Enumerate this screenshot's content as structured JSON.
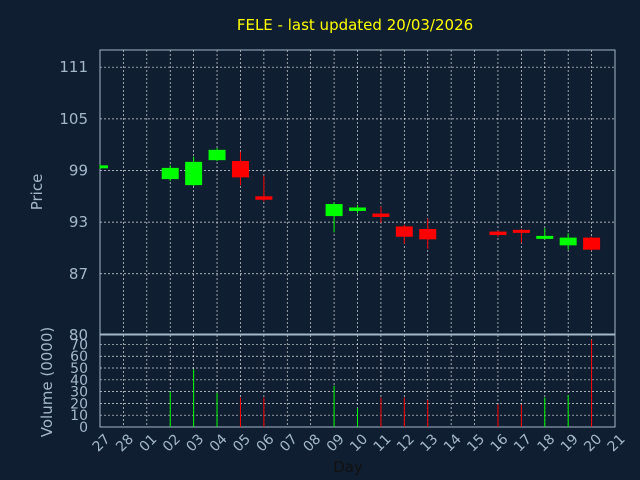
{
  "chart_data": {
    "type": "candlestick",
    "title": "FELE - last updated 20/03/2026",
    "price_ylabel": "Price",
    "volume_ylabel": "Volume (0000)",
    "xlabel": "Day",
    "price_ylim": [
      80,
      113
    ],
    "price_yticks": [
      87,
      93,
      99,
      105,
      111
    ],
    "volume_ylim": [
      0,
      78
    ],
    "volume_yticks": [
      0,
      10,
      20,
      30,
      40,
      50,
      60,
      70
    ],
    "bottom_label": "80",
    "x_labels": [
      "27",
      "28",
      "01",
      "02",
      "03",
      "04",
      "05",
      "06",
      "07",
      "08",
      "09",
      "10",
      "11",
      "12",
      "13",
      "14",
      "15",
      "16",
      "17",
      "18",
      "19",
      "20",
      "21"
    ],
    "grid": true,
    "colors": {
      "up": "#00ff00",
      "down": "#ff0000",
      "background": "#0f1e30",
      "axis_text": "#a4b8cc",
      "title": "#ffff00"
    },
    "candles": [
      {
        "day": "27",
        "open": 99.3,
        "high": 99.7,
        "low": 99.2,
        "close": 99.6,
        "volume": 0
      },
      {
        "day": "02",
        "open": 98.0,
        "high": 99.6,
        "low": 97.8,
        "close": 99.3,
        "volume": 30
      },
      {
        "day": "03",
        "open": 97.3,
        "high": 100.6,
        "low": 97.2,
        "close": 100.0,
        "volume": 49
      },
      {
        "day": "04",
        "open": 100.2,
        "high": 101.6,
        "low": 100.1,
        "close": 101.4,
        "volume": 29
      },
      {
        "day": "05",
        "open": 100.1,
        "high": 101.2,
        "low": 97.3,
        "close": 98.2,
        "volume": 25
      },
      {
        "day": "06",
        "open": 96.0,
        "high": 98.4,
        "low": 95.4,
        "close": 95.6,
        "volume": 25
      },
      {
        "day": "09",
        "open": 93.7,
        "high": 95.3,
        "low": 91.8,
        "close": 95.1,
        "volume": 35
      },
      {
        "day": "10",
        "open": 94.3,
        "high": 95.0,
        "low": 94.0,
        "close": 94.7,
        "volume": 16
      },
      {
        "day": "11",
        "open": 94.0,
        "high": 94.8,
        "low": 92.9,
        "close": 93.6,
        "volume": 25
      },
      {
        "day": "12",
        "open": 92.5,
        "high": 92.7,
        "low": 90.5,
        "close": 91.3,
        "volume": 25
      },
      {
        "day": "13",
        "open": 92.2,
        "high": 93.4,
        "low": 89.9,
        "close": 91.0,
        "volume": 23
      },
      {
        "day": "16",
        "open": 91.9,
        "high": 92.0,
        "low": 91.3,
        "close": 91.5,
        "volume": 19
      },
      {
        "day": "17",
        "open": 92.1,
        "high": 92.2,
        "low": 90.6,
        "close": 91.8,
        "volume": 19
      },
      {
        "day": "18",
        "open": 91.2,
        "high": 92.3,
        "low": 91.0,
        "close": 91.4,
        "volume": 25
      },
      {
        "day": "19",
        "open": 90.3,
        "high": 91.7,
        "low": 89.8,
        "close": 91.2,
        "volume": 27
      },
      {
        "day": "20",
        "open": 91.2,
        "high": 91.3,
        "low": 89.7,
        "close": 89.8,
        "volume": 74
      }
    ]
  }
}
